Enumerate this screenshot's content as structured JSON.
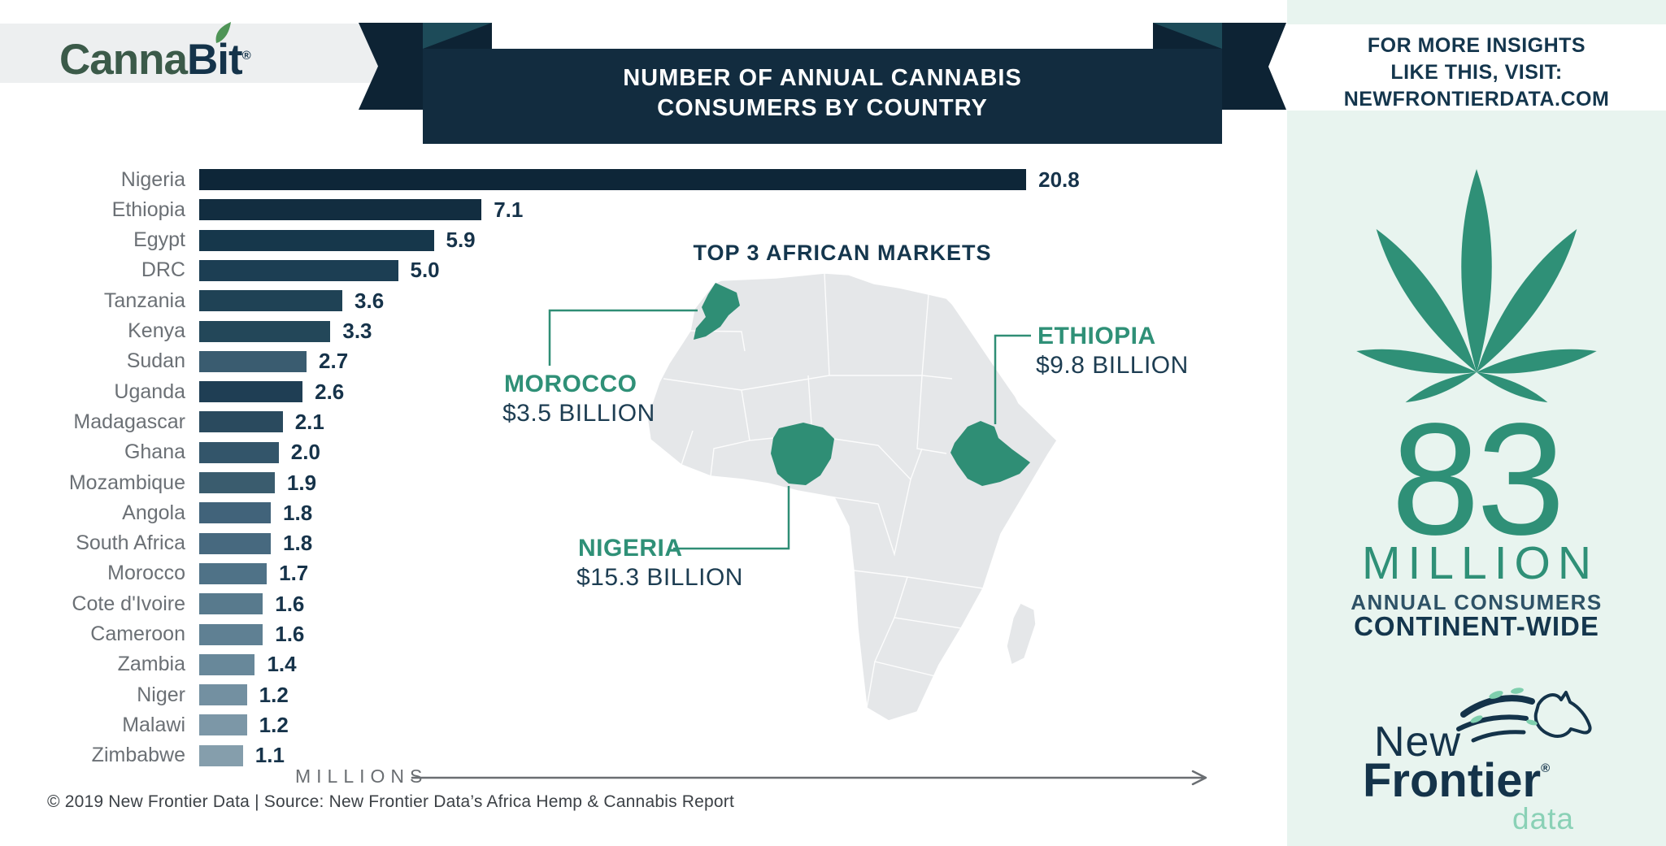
{
  "header": {
    "logo": {
      "canna": "Canna",
      "b": "B",
      "i": "i",
      "t": "t",
      "reg": "®"
    },
    "banner_line1": "NUMBER OF ANNUAL CANNABIS",
    "banner_line2": "CONSUMERS BY COUNTRY",
    "visit_line1": "FOR MORE INSIGHTS",
    "visit_line2": "LIKE THIS, VISIT:",
    "visit_line3": "NEWFRONTIERDATA.COM"
  },
  "chart_data": {
    "type": "bar",
    "orientation": "horizontal",
    "title": "NUMBER OF ANNUAL CANNABIS CONSUMERS BY COUNTRY",
    "xlabel": "MILLIONS",
    "xlim": [
      0,
      21
    ],
    "categories": [
      "Nigeria",
      "Ethiopia",
      "Egypt",
      "DRC",
      "Tanzania",
      "Kenya",
      "Sudan",
      "Uganda",
      "Madagascar",
      "Ghana",
      "Mozambique",
      "Angola",
      "South Africa",
      "Morocco",
      "Cote d'Ivoire",
      "Cameroon",
      "Zambia",
      "Niger",
      "Malawi",
      "Zimbabwe"
    ],
    "values": [
      20.8,
      7.1,
      5.9,
      5.0,
      3.6,
      3.3,
      2.7,
      2.6,
      2.1,
      2.0,
      1.9,
      1.8,
      1.8,
      1.7,
      1.6,
      1.6,
      1.4,
      1.2,
      1.2,
      1.1
    ],
    "value_labels": [
      "20.8",
      "7.1",
      "5.9",
      "5.0",
      "3.6",
      "3.3",
      "2.7",
      "2.6",
      "2.1",
      "2.0",
      "1.9",
      "1.8",
      "1.8",
      "1.7",
      "1.6",
      "1.6",
      "1.4",
      "1.2",
      "1.2",
      "1.1"
    ],
    "bar_colors": [
      "#0e2638",
      "#122d40",
      "#16374b",
      "#1c3e53",
      "#1f4255",
      "#234759",
      "#3a5c70",
      "#1f3e54",
      "#2a4a5e",
      "#33556a",
      "#3a5c6e",
      "#41637a",
      "#47697f",
      "#4f7287",
      "#587a8d",
      "#5f8093",
      "#68889a",
      "#7390a1",
      "#7c97a7",
      "#859eac"
    ],
    "grid": false,
    "legend": null
  },
  "map": {
    "title": "TOP 3 AFRICAN MARKETS",
    "markets": [
      {
        "name": "MOROCCO",
        "value": "$3.5 BILLION"
      },
      {
        "name": "ETHIOPIA",
        "value": "$9.8 BILLION"
      },
      {
        "name": "NIGERIA",
        "value": "$15.3 BILLION"
      }
    ]
  },
  "panel": {
    "big_number": "83",
    "big_unit": "MILLION",
    "line1": "ANNUAL CONSUMERS",
    "line2": "CONTINENT-WIDE",
    "logo": {
      "new": "New",
      "frontier": "Frontier",
      "reg": "®",
      "data": "data"
    }
  },
  "footer": {
    "text": "© 2019  New Frontier Data | Source:  New Frontier Data’s Africa Hemp & Cannabis Report"
  },
  "colors": {
    "navy-banner": "#122c3f",
    "navy-tail": "#0d2334",
    "teal-fold": "#1d4b59",
    "text-navy": "#14364d",
    "logo-navy": "#14334a",
    "canna-green": "#3b5a49",
    "leaf-accent-green": "#4e9456",
    "teal": "#2f9077",
    "map-highlight": "#2f8e75",
    "mint": "#e8f4ef",
    "gray-band": "#edeff0",
    "label-gray": "#6b7075",
    "value-navy": "#16334a",
    "map-gray": "#e5e7e9",
    "map-val-navy": "#1d3d52",
    "slate": "#2e5266",
    "axis-gray": "#6a6e72",
    "footer-gray": "#3c4146",
    "data-green": "#8ad1b6",
    "logo-leaf-green": "#7fcfae"
  }
}
